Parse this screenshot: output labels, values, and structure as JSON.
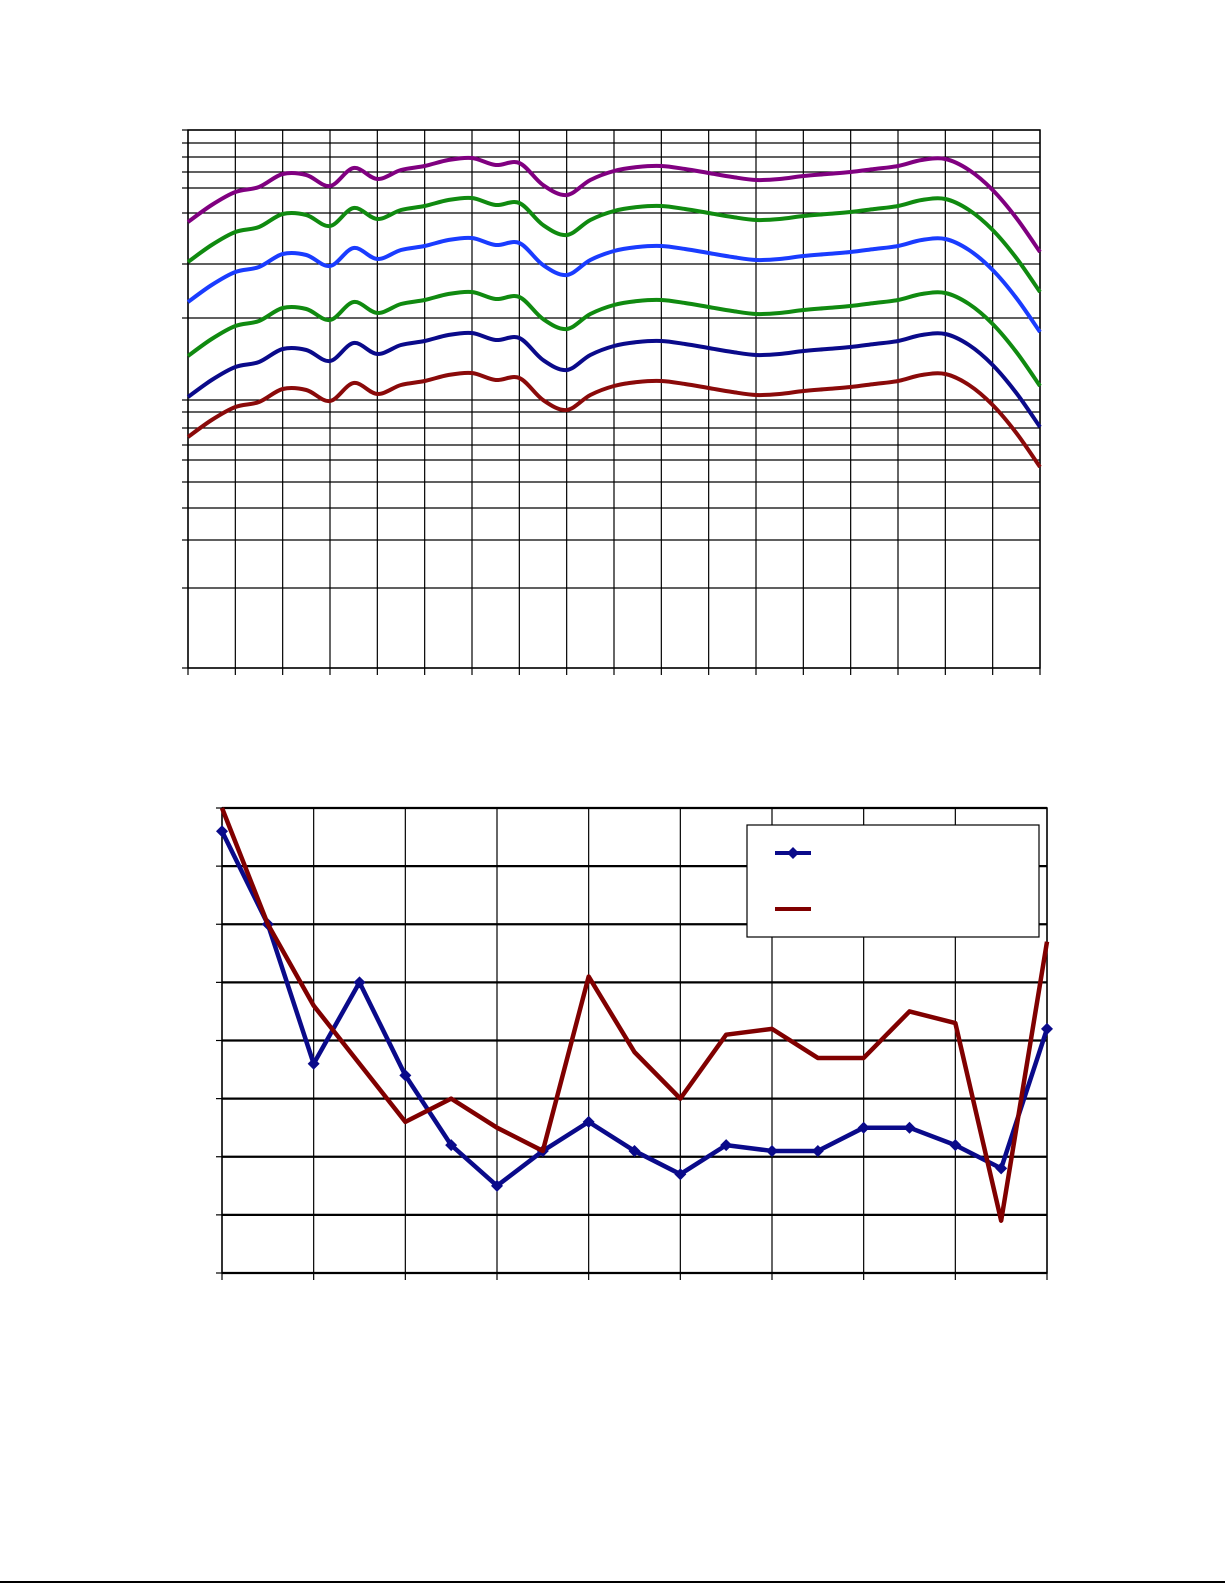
{
  "chart_data": [
    {
      "type": "line",
      "smooth": true,
      "grid": true,
      "x": [
        0,
        0.5,
        1,
        1.5,
        2,
        2.5,
        3,
        3.5,
        4,
        4.5,
        5,
        5.5,
        6,
        6.5,
        7,
        7.5,
        8,
        8.5,
        9,
        9.5,
        10,
        10.5,
        11,
        11.5,
        12,
        12.5,
        13,
        13.5,
        14,
        14.5,
        15,
        15.5,
        16,
        16.5,
        17,
        17.5,
        18
      ],
      "xlim": [
        0,
        18
      ],
      "xticks": [
        0,
        1,
        2,
        3,
        4,
        5,
        6,
        7,
        8,
        9,
        10,
        11,
        12,
        13,
        14,
        15,
        16,
        17,
        18
      ],
      "ylim": [
        0,
        538
      ],
      "yticks": [
        0,
        80,
        128,
        160,
        186,
        208,
        223,
        240,
        256,
        268,
        350,
        404,
        455,
        480,
        496,
        511,
        525,
        538
      ],
      "series": [
        {
          "color": "#800080",
          "values": [
            446,
            463,
            476,
            481,
            494,
            493,
            482,
            500,
            489,
            498,
            502,
            508,
            510,
            503,
            505,
            483,
            473,
            488,
            497,
            501,
            502,
            499,
            495,
            491,
            488,
            489,
            492,
            494,
            496,
            499,
            502,
            508,
            509,
            498,
            478,
            450,
            416
          ]
        },
        {
          "color": "#108a10",
          "values": [
            406,
            423,
            436,
            441,
            454,
            453,
            442,
            460,
            449,
            458,
            462,
            468,
            470,
            463,
            465,
            443,
            433,
            448,
            457,
            461,
            462,
            459,
            455,
            451,
            448,
            449,
            452,
            454,
            456,
            459,
            462,
            468,
            469,
            458,
            438,
            410,
            376
          ]
        },
        {
          "color": "#1a3cff",
          "values": [
            366,
            383,
            396,
            401,
            414,
            413,
            402,
            420,
            409,
            418,
            422,
            428,
            430,
            423,
            425,
            403,
            393,
            408,
            417,
            421,
            422,
            419,
            415,
            411,
            408,
            409,
            412,
            414,
            416,
            419,
            422,
            428,
            429,
            418,
            398,
            370,
            336
          ]
        },
        {
          "color": "#108a10",
          "values": [
            312,
            329,
            342,
            347,
            360,
            359,
            348,
            366,
            355,
            364,
            368,
            374,
            376,
            369,
            371,
            349,
            339,
            354,
            363,
            367,
            368,
            365,
            361,
            357,
            354,
            355,
            358,
            360,
            362,
            365,
            368,
            374,
            375,
            364,
            344,
            316,
            282
          ]
        },
        {
          "color": "#0a0a8a",
          "values": [
            271,
            288,
            301,
            306,
            319,
            318,
            307,
            325,
            314,
            323,
            327,
            333,
            335,
            328,
            330,
            308,
            298,
            313,
            322,
            326,
            327,
            324,
            320,
            316,
            313,
            314,
            317,
            319,
            321,
            324,
            327,
            333,
            334,
            323,
            303,
            275,
            241
          ]
        },
        {
          "color": "#8a0a0a",
          "values": [
            231,
            248,
            261,
            266,
            279,
            278,
            267,
            285,
            274,
            283,
            287,
            293,
            295,
            288,
            290,
            268,
            258,
            273,
            282,
            286,
            287,
            284,
            280,
            276,
            273,
            274,
            277,
            279,
            281,
            284,
            287,
            293,
            294,
            283,
            263,
            235,
            201
          ]
        }
      ]
    },
    {
      "type": "line",
      "smooth": false,
      "grid": true,
      "legend": "upper right",
      "x": [
        0,
        0.5,
        1,
        1.5,
        2,
        2.5,
        3,
        3.5,
        4,
        4.5,
        5,
        5.5,
        6,
        6.5,
        7,
        7.5,
        8,
        8.5,
        9
      ],
      "xlim": [
        0,
        9
      ],
      "xticks": [
        0,
        1,
        2,
        3,
        4,
        5,
        6,
        7,
        8,
        9
      ],
      "ylim": [
        0,
        8
      ],
      "yticks": [
        0,
        1,
        2,
        3,
        4,
        5,
        6,
        7,
        8
      ],
      "series": [
        {
          "color": "#0a0a8a",
          "marker": "diamond",
          "values": [
            7.6,
            6.0,
            3.6,
            5.0,
            3.4,
            2.2,
            1.5,
            2.1,
            2.6,
            2.1,
            1.7,
            2.2,
            2.1,
            2.1,
            2.5,
            2.5,
            2.2,
            1.8,
            4.2
          ]
        },
        {
          "color": "#800000",
          "values": [
            8.0,
            6.0,
            4.6,
            3.6,
            2.6,
            3.0,
            2.5,
            2.1,
            5.1,
            3.8,
            3.0,
            4.1,
            4.2,
            3.7,
            3.7,
            4.5,
            4.3,
            0.9,
            5.7
          ]
        }
      ]
    }
  ]
}
